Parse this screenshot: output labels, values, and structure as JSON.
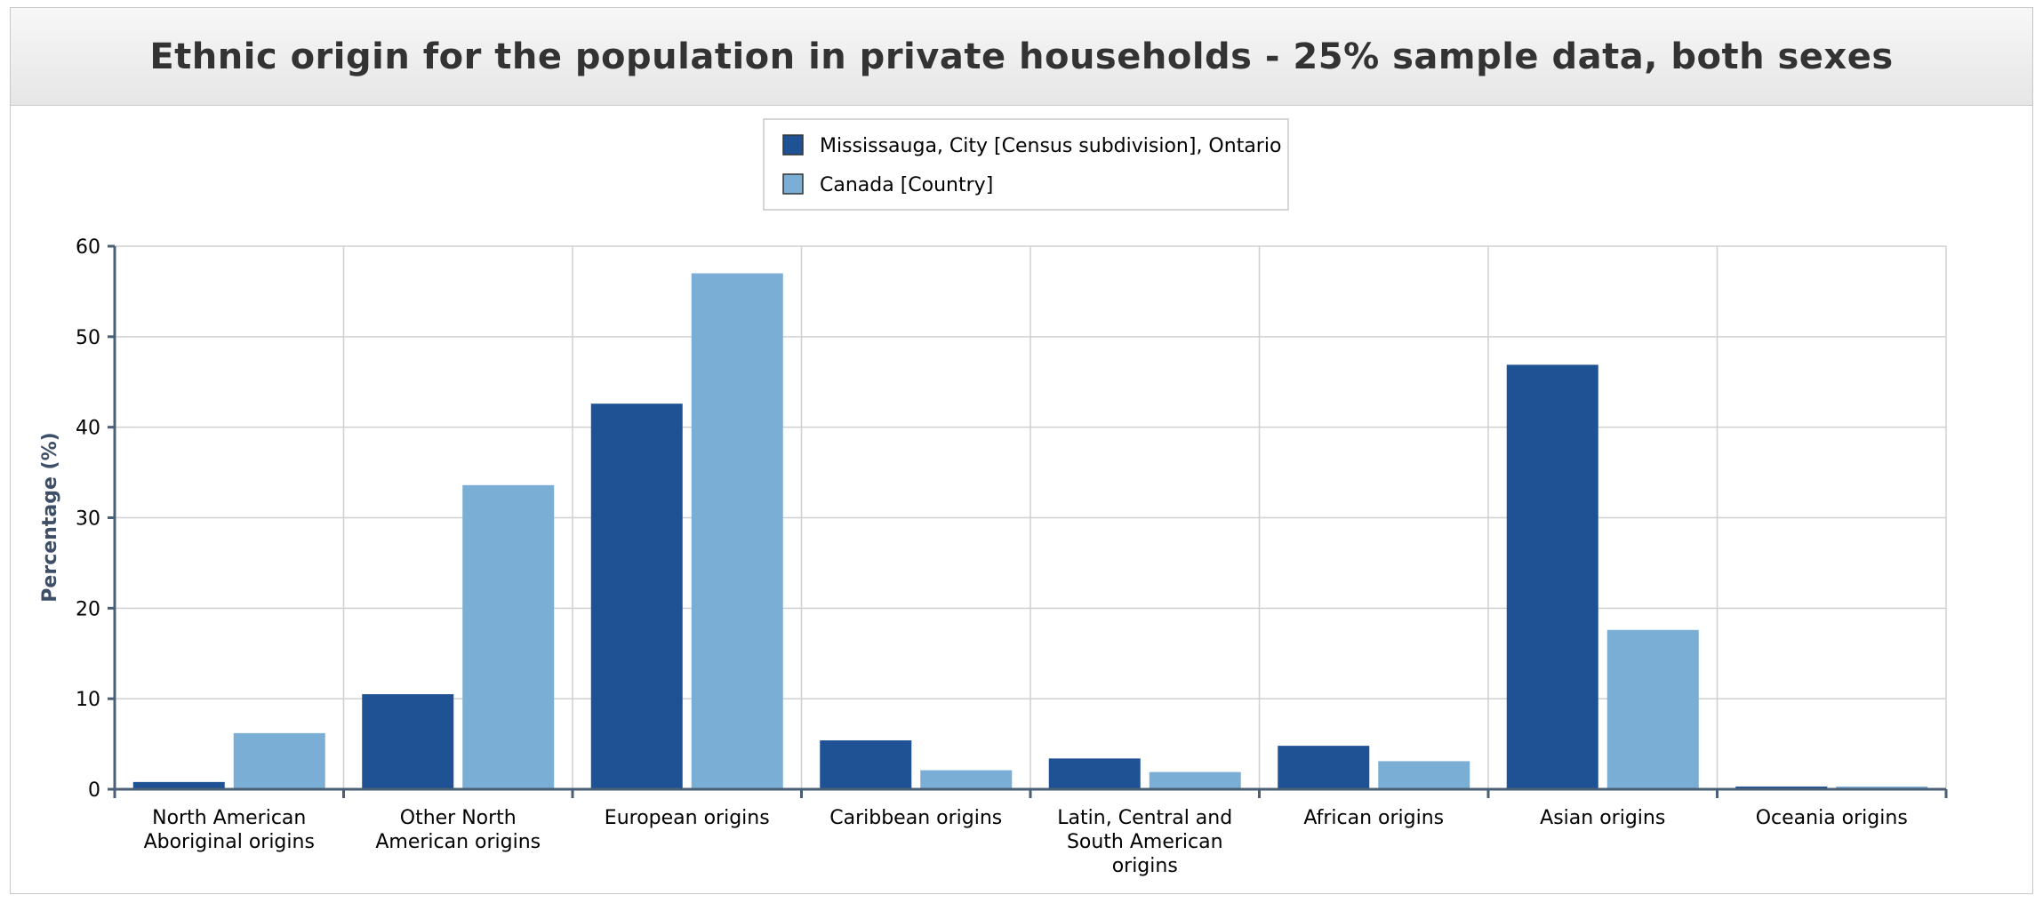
{
  "chart_data": {
    "type": "bar",
    "title": "Ethnic origin for the population in private households - 25% sample data, both sexes",
    "ylabel": "Percentage (%)",
    "xlabel": "",
    "ylim": [
      0,
      60
    ],
    "yticks": [
      "0",
      "10",
      "20",
      "30",
      "40",
      "50",
      "60"
    ],
    "grid": true,
    "legend_position": "top-center",
    "categories": [
      [
        "North American",
        "Aboriginal origins"
      ],
      [
        "Other North",
        "American origins"
      ],
      [
        "European origins"
      ],
      [
        "Caribbean origins"
      ],
      [
        "Latin, Central and",
        "South American",
        "origins"
      ],
      [
        "African origins"
      ],
      [
        "Asian origins"
      ],
      [
        "Oceania origins"
      ]
    ],
    "series": [
      {
        "name": "Mississauga, City [Census subdivision], Ontario",
        "color": "#1f5295",
        "values": [
          0.8,
          10.5,
          42.6,
          5.4,
          3.4,
          4.8,
          46.9,
          0.3
        ]
      },
      {
        "name": "Canada [Country]",
        "color": "#7aaed4",
        "values": [
          6.2,
          33.6,
          57.0,
          2.1,
          1.9,
          3.1,
          17.6,
          0.3
        ]
      }
    ]
  }
}
